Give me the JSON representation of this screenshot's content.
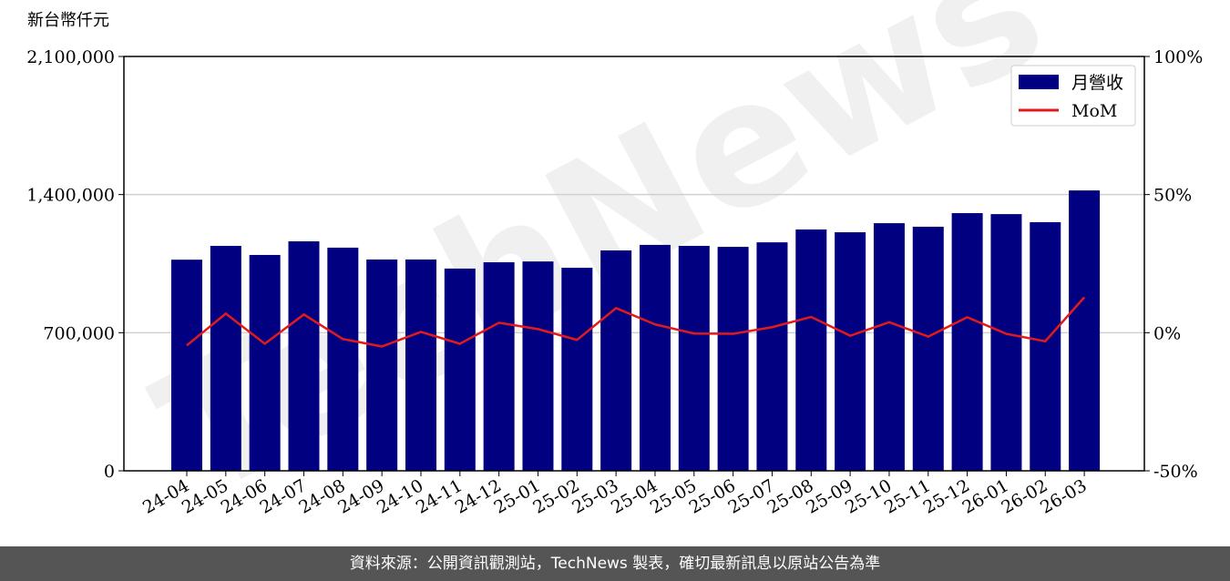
{
  "chart_data": {
    "type": "bar-line",
    "y_label": "新台幣仟元",
    "watermark": "TechNews",
    "categories": [
      "24-04",
      "24-05",
      "24-06",
      "24-07",
      "24-08",
      "24-09",
      "24-10",
      "24-11",
      "24-12",
      "25-01",
      "25-02",
      "25-03",
      "25-04",
      "25-05",
      "25-06",
      "25-07",
      "25-08",
      "25-09",
      "25-10",
      "25-11",
      "25-12",
      "26-01",
      "26-02",
      "26-03"
    ],
    "series": [
      {
        "name": "月營收",
        "color": "#000080",
        "type": "bar",
        "values": [
          1070000,
          1140000,
          1094000,
          1163000,
          1131000,
          1071000,
          1071000,
          1025000,
          1057000,
          1061000,
          1029000,
          1117000,
          1145000,
          1140000,
          1135000,
          1158000,
          1223000,
          1209000,
          1255000,
          1237000,
          1306000,
          1301000,
          1260000,
          1421000
        ]
      },
      {
        "name": "MoM",
        "color": "#e31a1c",
        "type": "line",
        "axis": "y2",
        "values": [
          -4.6,
          6.9,
          -4.0,
          6.6,
          -2.3,
          -5.0,
          0.3,
          -4.0,
          3.6,
          1.3,
          -2.6,
          8.9,
          3.0,
          -0.3,
          -0.4,
          2.0,
          5.7,
          -1.1,
          3.8,
          -1.4,
          5.6,
          -0.4,
          -3.1,
          12.8
        ]
      }
    ],
    "ylim": [
      0,
      2100000
    ],
    "yticks": [
      0,
      {
        "value": 700000,
        "label": "700,000"
      },
      {
        "value": 1400000,
        "label": "1,400,000"
      },
      {
        "value": 2100000,
        "label": "2,100,000"
      }
    ],
    "y2lim": [
      -50,
      100
    ],
    "y2ticks": [
      {
        "value": -50,
        "label": "-50%"
      },
      {
        "value": 0,
        "label": "0%"
      },
      {
        "value": 50,
        "label": "50%"
      },
      {
        "value": 100,
        "label": "100%"
      }
    ],
    "grid": true,
    "legend": "upper right"
  },
  "footer": "資料來源：公開資訊觀測站，TechNews 製表，確切最新訊息以原站公告為準"
}
